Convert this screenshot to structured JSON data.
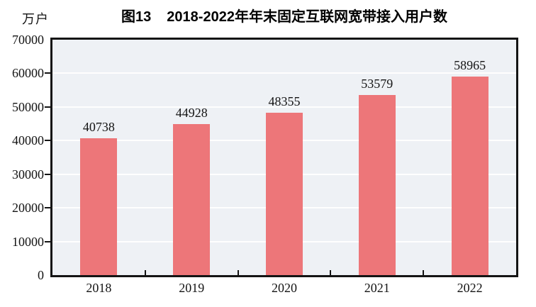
{
  "header": {
    "figure_label": "图13",
    "title": "2018-2022年年末固定互联网宽带接入用户数",
    "unit_label": "万户"
  },
  "colors": {
    "bar": "#ed7679",
    "plot_background": "#eef1f5",
    "gridline": "#f7fafc",
    "axis": "#141414",
    "text": "#141414"
  },
  "chart_data": {
    "type": "bar",
    "title": "图13 2018-2022年年末固定互联网宽带接入用户数",
    "unit": "万户",
    "categories": [
      "2018",
      "2019",
      "2020",
      "2021",
      "2022"
    ],
    "values": [
      40738,
      44928,
      48355,
      53579,
      58965
    ],
    "data_labels": [
      "40738",
      "44928",
      "48355",
      "53579",
      "58965"
    ],
    "ylabel": "万户",
    "xlabel": "",
    "ylim": [
      0,
      70000
    ],
    "ytick_step": 10000,
    "ytick_labels": [
      "0",
      "10000",
      "20000",
      "30000",
      "40000",
      "50000",
      "60000",
      "70000"
    ],
    "grid": "horizontal",
    "legend": "none"
  }
}
